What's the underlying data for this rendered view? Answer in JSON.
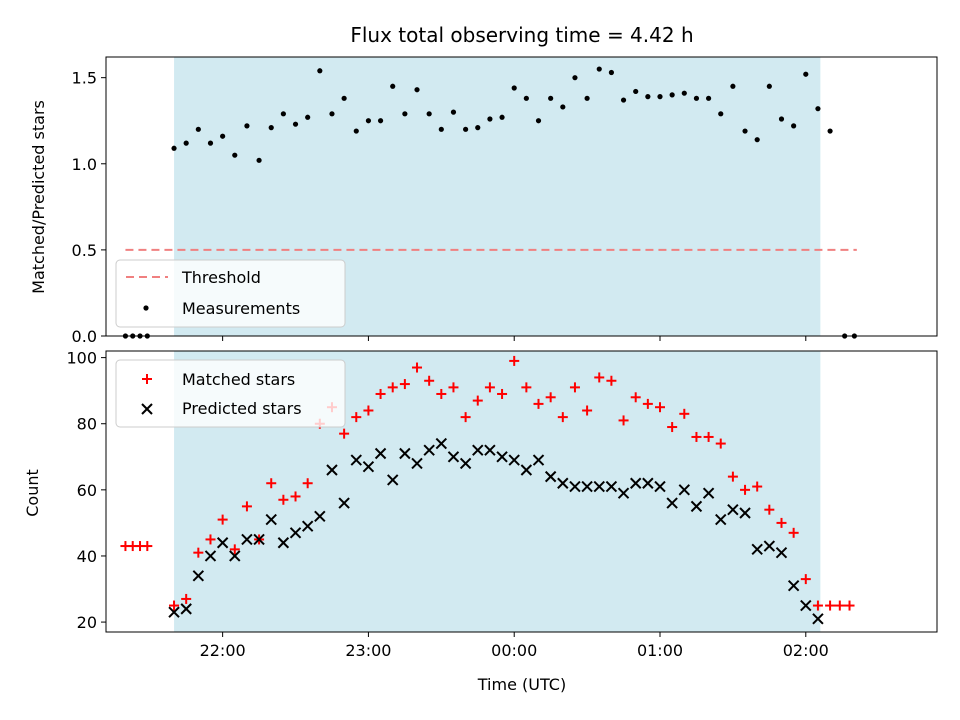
{
  "chart_data": {
    "type": "scatter",
    "title": "Flux total observing time = 4.42 h",
    "xlabel": "Time (UTC)",
    "x_range": [
      "21:12",
      "02:54"
    ],
    "x_ticks": [
      "22:00",
      "23:00",
      "00:00",
      "01:00",
      "02:00"
    ],
    "shaded_span": [
      "21:40",
      "02:06"
    ],
    "shade_color": "#add8e6",
    "top_panel": {
      "ylabel": "Matched/Predicted stars",
      "ylim": [
        0,
        1.62
      ],
      "y_ticks": [
        "0.0",
        "0.5",
        "1.0",
        "1.5"
      ],
      "legend": {
        "placement": "lower-left",
        "threshold_label": "Threshold",
        "measurements_label": "Measurements"
      },
      "threshold": {
        "value": 0.5,
        "x_start": "21:20",
        "x_end": "02:21",
        "color": "#f08080"
      },
      "measurements_color": "#000000",
      "measurements": [
        [
          "21:20",
          0.0
        ],
        [
          "21:23",
          0.0
        ],
        [
          "21:26",
          0.0
        ],
        [
          "21:29",
          0.0
        ],
        [
          "21:40",
          1.09
        ],
        [
          "21:45",
          1.12
        ],
        [
          "21:50",
          1.2
        ],
        [
          "21:55",
          1.12
        ],
        [
          "22:00",
          1.16
        ],
        [
          "22:05",
          1.05
        ],
        [
          "22:10",
          1.22
        ],
        [
          "22:15",
          1.02
        ],
        [
          "22:20",
          1.21
        ],
        [
          "22:25",
          1.29
        ],
        [
          "22:30",
          1.23
        ],
        [
          "22:35",
          1.27
        ],
        [
          "22:40",
          1.54
        ],
        [
          "22:45",
          1.29
        ],
        [
          "22:50",
          1.38
        ],
        [
          "22:55",
          1.19
        ],
        [
          "23:00",
          1.25
        ],
        [
          "23:05",
          1.25
        ],
        [
          "23:10",
          1.45
        ],
        [
          "23:15",
          1.29
        ],
        [
          "23:20",
          1.43
        ],
        [
          "23:25",
          1.29
        ],
        [
          "23:30",
          1.2
        ],
        [
          "23:35",
          1.3
        ],
        [
          "23:40",
          1.2
        ],
        [
          "23:45",
          1.21
        ],
        [
          "23:50",
          1.26
        ],
        [
          "23:55",
          1.27
        ],
        [
          "00:00",
          1.44
        ],
        [
          "00:05",
          1.38
        ],
        [
          "00:10",
          1.25
        ],
        [
          "00:15",
          1.38
        ],
        [
          "00:20",
          1.33
        ],
        [
          "00:25",
          1.5
        ],
        [
          "00:30",
          1.38
        ],
        [
          "00:35",
          1.55
        ],
        [
          "00:40",
          1.53
        ],
        [
          "00:45",
          1.37
        ],
        [
          "00:50",
          1.42
        ],
        [
          "00:55",
          1.39
        ],
        [
          "01:00",
          1.39
        ],
        [
          "01:05",
          1.4
        ],
        [
          "01:10",
          1.41
        ],
        [
          "01:15",
          1.38
        ],
        [
          "01:20",
          1.38
        ],
        [
          "01:25",
          1.29
        ],
        [
          "01:30",
          1.45
        ],
        [
          "01:35",
          1.19
        ],
        [
          "01:40",
          1.14
        ],
        [
          "01:45",
          1.45
        ],
        [
          "01:50",
          1.26
        ],
        [
          "01:55",
          1.22
        ],
        [
          "02:00",
          1.52
        ],
        [
          "02:05",
          1.32
        ],
        [
          "02:10",
          1.19
        ],
        [
          "02:16",
          0.0
        ],
        [
          "02:20",
          0.0
        ]
      ]
    },
    "bottom_panel": {
      "ylabel": "Count",
      "ylim": [
        17,
        102
      ],
      "y_ticks": [
        "20",
        "40",
        "60",
        "80",
        "100"
      ],
      "legend": {
        "placement": "upper-left"
      },
      "series": [
        {
          "name": "Matched stars",
          "marker": "plus",
          "color": "#ff0000",
          "points": [
            [
              "21:20",
              43
            ],
            [
              "21:23",
              43
            ],
            [
              "21:26",
              43
            ],
            [
              "21:29",
              43
            ],
            [
              "21:40",
              25
            ],
            [
              "21:45",
              27
            ],
            [
              "21:50",
              41
            ],
            [
              "21:55",
              45
            ],
            [
              "22:00",
              51
            ],
            [
              "22:05",
              42
            ],
            [
              "22:10",
              55
            ],
            [
              "22:15",
              45
            ],
            [
              "22:20",
              62
            ],
            [
              "22:25",
              57
            ],
            [
              "22:30",
              58
            ],
            [
              "22:35",
              62
            ],
            [
              "22:40",
              80
            ],
            [
              "22:45",
              85
            ],
            [
              "22:50",
              77
            ],
            [
              "22:55",
              82
            ],
            [
              "23:00",
              84
            ],
            [
              "23:05",
              89
            ],
            [
              "23:10",
              91
            ],
            [
              "23:15",
              92
            ],
            [
              "23:20",
              97
            ],
            [
              "23:25",
              93
            ],
            [
              "23:30",
              89
            ],
            [
              "23:35",
              91
            ],
            [
              "23:40",
              82
            ],
            [
              "23:45",
              87
            ],
            [
              "23:50",
              91
            ],
            [
              "23:55",
              89
            ],
            [
              "00:00",
              99
            ],
            [
              "00:05",
              91
            ],
            [
              "00:10",
              86
            ],
            [
              "00:15",
              88
            ],
            [
              "00:20",
              82
            ],
            [
              "00:25",
              91
            ],
            [
              "00:30",
              84
            ],
            [
              "00:35",
              94
            ],
            [
              "00:40",
              93
            ],
            [
              "00:45",
              81
            ],
            [
              "00:50",
              88
            ],
            [
              "00:55",
              86
            ],
            [
              "01:00",
              85
            ],
            [
              "01:05",
              79
            ],
            [
              "01:10",
              83
            ],
            [
              "01:15",
              76
            ],
            [
              "01:20",
              76
            ],
            [
              "01:25",
              74
            ],
            [
              "01:30",
              64
            ],
            [
              "01:35",
              60
            ],
            [
              "01:40",
              61
            ],
            [
              "01:45",
              54
            ],
            [
              "01:50",
              50
            ],
            [
              "01:55",
              47
            ],
            [
              "02:00",
              33
            ],
            [
              "02:05",
              25
            ],
            [
              "02:10",
              25
            ],
            [
              "02:14",
              25
            ],
            [
              "02:18",
              25
            ]
          ]
        },
        {
          "name": "Predicted stars",
          "marker": "x",
          "color": "#000000",
          "points": [
            [
              "21:40",
              23
            ],
            [
              "21:45",
              24
            ],
            [
              "21:50",
              34
            ],
            [
              "21:55",
              40
            ],
            [
              "22:00",
              44
            ],
            [
              "22:05",
              40
            ],
            [
              "22:10",
              45
            ],
            [
              "22:15",
              45
            ],
            [
              "22:20",
              51
            ],
            [
              "22:25",
              44
            ],
            [
              "22:30",
              47
            ],
            [
              "22:35",
              49
            ],
            [
              "22:40",
              52
            ],
            [
              "22:45",
              66
            ],
            [
              "22:50",
              56
            ],
            [
              "22:55",
              69
            ],
            [
              "23:00",
              67
            ],
            [
              "23:05",
              71
            ],
            [
              "23:10",
              63
            ],
            [
              "23:15",
              71
            ],
            [
              "23:20",
              68
            ],
            [
              "23:25",
              72
            ],
            [
              "23:30",
              74
            ],
            [
              "23:35",
              70
            ],
            [
              "23:40",
              68
            ],
            [
              "23:45",
              72
            ],
            [
              "23:50",
              72
            ],
            [
              "23:55",
              70
            ],
            [
              "00:00",
              69
            ],
            [
              "00:05",
              66
            ],
            [
              "00:10",
              69
            ],
            [
              "00:15",
              64
            ],
            [
              "00:20",
              62
            ],
            [
              "00:25",
              61
            ],
            [
              "00:30",
              61
            ],
            [
              "00:35",
              61
            ],
            [
              "00:40",
              61
            ],
            [
              "00:45",
              59
            ],
            [
              "00:50",
              62
            ],
            [
              "00:55",
              62
            ],
            [
              "01:00",
              61
            ],
            [
              "01:05",
              56
            ],
            [
              "01:10",
              60
            ],
            [
              "01:15",
              55
            ],
            [
              "01:20",
              59
            ],
            [
              "01:25",
              51
            ],
            [
              "01:30",
              54
            ],
            [
              "01:35",
              53
            ],
            [
              "01:40",
              42
            ],
            [
              "01:45",
              43
            ],
            [
              "01:50",
              41
            ],
            [
              "01:55",
              31
            ],
            [
              "02:00",
              25
            ],
            [
              "02:05",
              21
            ]
          ]
        }
      ]
    }
  }
}
